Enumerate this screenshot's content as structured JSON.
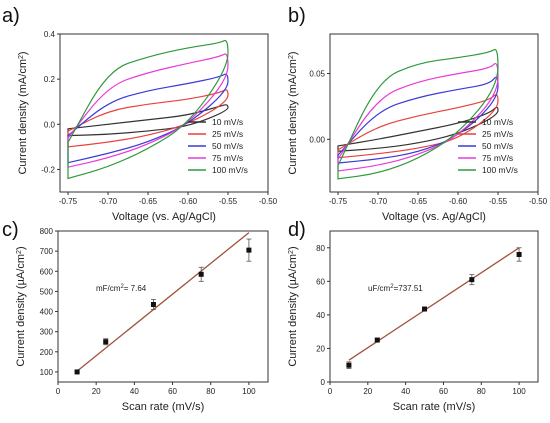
{
  "chart_data": [
    {
      "panel_label": "a)",
      "type": "line",
      "xlabel": "Voltage (vs. Ag/AgCl)",
      "ylabel": "Current density (mA/cm²)",
      "xlim": [
        -0.76,
        -0.5
      ],
      "ylim": [
        -0.3,
        0.4
      ],
      "xticks": [
        -0.75,
        -0.7,
        -0.65,
        -0.6,
        -0.55,
        -0.5
      ],
      "xtick_labels": [
        "-0.75",
        "-0.70",
        "-0.65",
        "-0.60",
        "-0.55",
        "-0.50"
      ],
      "yticks": [
        -0.2,
        0.0,
        0.2,
        0.4
      ],
      "ytick_labels": [
        "-0.2",
        "0.0",
        "0.2",
        "0.4"
      ],
      "legend": "bottom-right",
      "series": [
        {
          "name": "10 mV/s",
          "color": "#333333",
          "anodic_x": [
            -0.75,
            -0.7,
            -0.65,
            -0.6,
            -0.56,
            -0.55
          ],
          "anodic_y": [
            -0.02,
            0.0,
            0.02,
            0.04,
            0.08,
            0.09
          ],
          "cathodic_x": [
            -0.55,
            -0.6,
            -0.65,
            -0.7,
            -0.75
          ],
          "cathodic_y": [
            0.06,
            -0.01,
            -0.03,
            -0.045,
            -0.05
          ]
        },
        {
          "name": "25 mV/s",
          "color": "#e8413c",
          "anodic_x": [
            -0.75,
            -0.7,
            -0.65,
            -0.6,
            -0.56,
            -0.55
          ],
          "anodic_y": [
            -0.03,
            0.06,
            0.09,
            0.11,
            0.14,
            0.16
          ],
          "cathodic_x": [
            -0.55,
            -0.6,
            -0.65,
            -0.7,
            -0.75
          ],
          "cathodic_y": [
            0.1,
            0.0,
            -0.05,
            -0.08,
            -0.1
          ]
        },
        {
          "name": "50 mV/s",
          "color": "#3a3ad9",
          "anodic_x": [
            -0.75,
            -0.7,
            -0.65,
            -0.6,
            -0.56,
            -0.55
          ],
          "anodic_y": [
            -0.05,
            0.1,
            0.15,
            0.18,
            0.21,
            0.23
          ],
          "cathodic_x": [
            -0.55,
            -0.6,
            -0.65,
            -0.7,
            -0.75
          ],
          "cathodic_y": [
            0.15,
            0.0,
            -0.08,
            -0.13,
            -0.17
          ]
        },
        {
          "name": "75 mV/s",
          "color": "#e83ad9",
          "anodic_x": [
            -0.75,
            -0.7,
            -0.65,
            -0.6,
            -0.56,
            -0.55
          ],
          "anodic_y": [
            -0.06,
            0.17,
            0.23,
            0.27,
            0.3,
            0.32
          ],
          "cathodic_x": [
            -0.55,
            -0.6,
            -0.65,
            -0.7,
            -0.75
          ],
          "cathodic_y": [
            0.2,
            0.0,
            -0.09,
            -0.15,
            -0.19
          ]
        },
        {
          "name": "100 mV/s",
          "color": "#2e9a3a",
          "anodic_x": [
            -0.75,
            -0.7,
            -0.65,
            -0.6,
            -0.56,
            -0.55
          ],
          "anodic_y": [
            -0.08,
            0.24,
            0.3,
            0.34,
            0.36,
            0.38
          ],
          "cathodic_x": [
            -0.55,
            -0.6,
            -0.65,
            -0.7,
            -0.75
          ],
          "cathodic_y": [
            0.25,
            0.0,
            -0.11,
            -0.19,
            -0.24
          ]
        }
      ]
    },
    {
      "panel_label": "b)",
      "type": "line",
      "xlabel": "Voltage (vs. Ag/AgCl)",
      "ylabel": "Current density (mA/cm²)",
      "xlim": [
        -0.76,
        -0.5
      ],
      "ylim": [
        -0.04,
        0.08
      ],
      "xticks": [
        -0.75,
        -0.7,
        -0.65,
        -0.6,
        -0.55,
        -0.5
      ],
      "xtick_labels": [
        "-0.75",
        "-0.70",
        "-0.65",
        "-0.60",
        "-0.55",
        "-0.50"
      ],
      "yticks": [
        0.0,
        0.05
      ],
      "ytick_labels": [
        "0.00",
        "0.05"
      ],
      "legend": "bottom-right",
      "series": [
        {
          "name": "10 mV/s",
          "color": "#333333",
          "anodic_x": [
            -0.75,
            -0.7,
            -0.65,
            -0.6,
            -0.56,
            -0.55
          ],
          "anodic_y": [
            -0.005,
            0.0,
            0.006,
            0.012,
            0.02,
            0.026
          ],
          "cathodic_x": [
            -0.55,
            -0.6,
            -0.65,
            -0.7,
            -0.75
          ],
          "cathodic_y": [
            0.018,
            0.004,
            -0.003,
            -0.007,
            -0.009
          ]
        },
        {
          "name": "25 mV/s",
          "color": "#e8413c",
          "anodic_x": [
            -0.75,
            -0.7,
            -0.65,
            -0.6,
            -0.56,
            -0.55
          ],
          "anodic_y": [
            -0.008,
            0.01,
            0.018,
            0.024,
            0.03,
            0.036
          ],
          "cathodic_x": [
            -0.55,
            -0.6,
            -0.65,
            -0.7,
            -0.75
          ],
          "cathodic_y": [
            0.022,
            0.0,
            -0.007,
            -0.011,
            -0.014
          ]
        },
        {
          "name": "50 mV/s",
          "color": "#3a3ad9",
          "anodic_x": [
            -0.75,
            -0.7,
            -0.65,
            -0.6,
            -0.56,
            -0.55
          ],
          "anodic_y": [
            -0.012,
            0.022,
            0.032,
            0.038,
            0.042,
            0.05
          ],
          "cathodic_x": [
            -0.55,
            -0.6,
            -0.65,
            -0.7,
            -0.75
          ],
          "cathodic_y": [
            0.03,
            0.002,
            -0.01,
            -0.015,
            -0.018
          ]
        },
        {
          "name": "75 mV/s",
          "color": "#e83ad9",
          "anodic_x": [
            -0.75,
            -0.7,
            -0.65,
            -0.6,
            -0.56,
            -0.55
          ],
          "anodic_y": [
            -0.015,
            0.032,
            0.044,
            0.05,
            0.054,
            0.06
          ],
          "cathodic_x": [
            -0.55,
            -0.6,
            -0.65,
            -0.7,
            -0.75
          ],
          "cathodic_y": [
            0.034,
            0.002,
            -0.012,
            -0.02,
            -0.024
          ]
        },
        {
          "name": "100 mV/s",
          "color": "#2e9a3a",
          "anodic_x": [
            -0.75,
            -0.7,
            -0.65,
            -0.6,
            -0.56,
            -0.55
          ],
          "anodic_y": [
            -0.02,
            0.045,
            0.058,
            0.062,
            0.066,
            0.07
          ],
          "cathodic_x": [
            -0.55,
            -0.6,
            -0.65,
            -0.7,
            -0.75
          ],
          "cathodic_y": [
            0.04,
            0.004,
            -0.015,
            -0.026,
            -0.03
          ]
        }
      ]
    },
    {
      "panel_label": "c)",
      "type": "scatter",
      "xlabel": "Scan rate (mV/s)",
      "ylabel": "Current density (µA/cm²)",
      "xlim": [
        0,
        110
      ],
      "ylim": [
        50,
        800
      ],
      "xticks": [
        0,
        20,
        40,
        60,
        80,
        100
      ],
      "xtick_labels": [
        "0",
        "20",
        "40",
        "60",
        "80",
        "100"
      ],
      "yticks": [
        100,
        200,
        300,
        400,
        500,
        600,
        700,
        800
      ],
      "ytick_labels": [
        "100",
        "200",
        "300",
        "400",
        "500",
        "600",
        "700",
        "800"
      ],
      "annotation": "mF/cm²= 7.64",
      "x": [
        10,
        25,
        50,
        75,
        100
      ],
      "y": [
        100,
        250,
        435,
        585,
        705
      ],
      "error": [
        5,
        15,
        25,
        35,
        55
      ],
      "fit_x": [
        10,
        100
      ],
      "fit_y": [
        104,
        792
      ],
      "marker_color": "#111111",
      "fit_color": "#a0523a"
    },
    {
      "panel_label": "d)",
      "type": "scatter",
      "xlabel": "Scan rate (mV/s)",
      "ylabel": "Current density (µA/cm²)",
      "xlim": [
        0,
        110
      ],
      "ylim": [
        0,
        90
      ],
      "xticks": [
        0,
        20,
        40,
        60,
        80,
        100
      ],
      "xtick_labels": [
        "0",
        "20",
        "40",
        "60",
        "80",
        "100"
      ],
      "yticks": [
        0,
        20,
        40,
        60,
        80
      ],
      "ytick_labels": [
        "0",
        "20",
        "40",
        "60",
        "80"
      ],
      "annotation": "uF/cm²=737.51",
      "x": [
        10,
        25,
        50,
        75,
        100
      ],
      "y": [
        10,
        25,
        43.5,
        61,
        76
      ],
      "error": [
        2,
        1,
        1,
        3,
        4
      ],
      "fit_x": [
        10,
        100
      ],
      "fit_y": [
        13,
        80
      ],
      "marker_color": "#111111",
      "fit_color": "#a0523a"
    }
  ]
}
